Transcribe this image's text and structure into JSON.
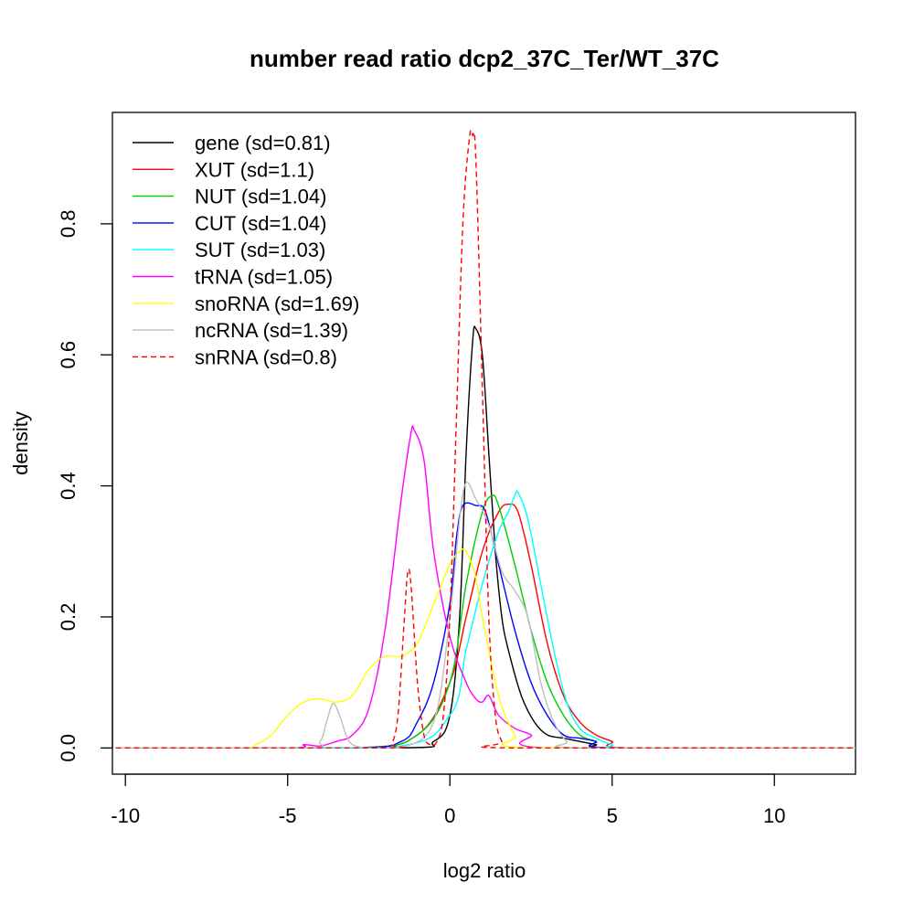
{
  "chart_data": {
    "type": "line",
    "title": "number read ratio dcp2_37C_Ter/WT_37C",
    "xlabel": "log2 ratio",
    "ylabel": "density",
    "xlim": [
      -10.4,
      12.5
    ],
    "ylim": [
      -0.04,
      0.97
    ],
    "xticks": [
      -10,
      -5,
      0,
      5,
      10
    ],
    "xtick_labels": [
      "-10",
      "-5",
      "0",
      "5",
      "10"
    ],
    "yticks": [
      0.0,
      0.2,
      0.4,
      0.6,
      0.8
    ],
    "ytick_labels": [
      "0.0",
      "0.2",
      "0.4",
      "0.6",
      "0.8"
    ],
    "grid": false,
    "legend_position": "top-left",
    "series": [
      {
        "name": "gene (sd=0.81)",
        "color": "#000000",
        "dash": "solid",
        "x": [
          -10.3,
          -1.5,
          -0.5,
          0,
          0.3,
          0.5,
          0.7,
          0.8,
          1.0,
          1.2,
          1.4,
          1.6,
          1.8,
          2.2,
          2.6,
          3.0,
          3.5,
          4.0,
          4.5,
          5.0,
          12.5
        ],
        "y": [
          0,
          0,
          0.01,
          0.05,
          0.2,
          0.45,
          0.62,
          0.64,
          0.6,
          0.45,
          0.3,
          0.2,
          0.15,
          0.08,
          0.04,
          0.02,
          0.015,
          0.01,
          0.005,
          0,
          0
        ]
      },
      {
        "name": "XUT (sd=1.1)",
        "color": "#ff0000",
        "dash": "solid",
        "x": [
          -10.3,
          -3,
          -1,
          0,
          0.5,
          1.0,
          1.5,
          1.8,
          2.1,
          2.5,
          3.0,
          3.5,
          4.0,
          4.5,
          5.0,
          5.5,
          12.5
        ],
        "y": [
          0,
          0,
          0.02,
          0.1,
          0.2,
          0.3,
          0.36,
          0.372,
          0.36,
          0.28,
          0.16,
          0.08,
          0.04,
          0.02,
          0.01,
          0,
          0
        ]
      },
      {
        "name": "NUT (sd=1.04)",
        "color": "#00cd00",
        "dash": "solid",
        "x": [
          -10.3,
          -3,
          -1,
          0,
          0.5,
          1.0,
          1.3,
          1.5,
          2.0,
          2.5,
          3.0,
          3.5,
          4.0,
          4.5,
          5.0,
          12.5
        ],
        "y": [
          0,
          0,
          0.02,
          0.1,
          0.25,
          0.36,
          0.385,
          0.37,
          0.28,
          0.18,
          0.1,
          0.05,
          0.02,
          0.01,
          0,
          0
        ]
      },
      {
        "name": "CUT (sd=1.04)",
        "color": "#0000ff",
        "dash": "solid",
        "x": [
          -10.3,
          -3,
          -1.5,
          -1,
          -0.5,
          0,
          0.2,
          0.4,
          0.8,
          1.1,
          1.5,
          2.0,
          2.5,
          3.0,
          3.5,
          4.0,
          4.5,
          5.0,
          12.5
        ],
        "y": [
          0,
          0,
          0.01,
          0.04,
          0.1,
          0.22,
          0.32,
          0.37,
          0.37,
          0.36,
          0.28,
          0.18,
          0.1,
          0.05,
          0.02,
          0.015,
          0.01,
          0,
          0
        ]
      },
      {
        "name": "SUT (sd=1.03)",
        "color": "#00ffff",
        "dash": "solid",
        "x": [
          -10.3,
          -2,
          0,
          0.5,
          1.0,
          1.5,
          1.8,
          2.0,
          2.1,
          2.4,
          2.8,
          3.2,
          3.6,
          4.0,
          4.5,
          5.0,
          5.5,
          12.5
        ],
        "y": [
          0,
          0,
          0.05,
          0.15,
          0.25,
          0.33,
          0.36,
          0.385,
          0.39,
          0.35,
          0.25,
          0.15,
          0.07,
          0.03,
          0.015,
          0.005,
          0,
          0
        ]
      },
      {
        "name": "tRNA (sd=1.05)",
        "color": "#ff00ff",
        "dash": "solid",
        "x": [
          -10.3,
          -5,
          -4.5,
          -4,
          -3.5,
          -3,
          -2.5,
          -2,
          -1.5,
          -1.2,
          -1.1,
          -0.8,
          -0.5,
          0,
          0.5,
          0.8,
          1.0,
          1.2,
          1.5,
          2.0,
          2.5,
          3.0,
          12.5
        ],
        "y": [
          0,
          0,
          0.005,
          0.003,
          0.01,
          0.02,
          0.06,
          0.18,
          0.38,
          0.48,
          0.485,
          0.44,
          0.3,
          0.17,
          0.1,
          0.075,
          0.07,
          0.08,
          0.05,
          0.03,
          0.02,
          0,
          0
        ]
      },
      {
        "name": "snoRNA (sd=1.69)",
        "color": "#ffff00",
        "dash": "solid",
        "x": [
          -10.3,
          -6.5,
          -6,
          -5.5,
          -5,
          -4.5,
          -4,
          -3.5,
          -3,
          -2.5,
          -2,
          -1.5,
          -1,
          -0.5,
          0,
          0.3,
          0.5,
          0.8,
          1.0,
          1.5,
          2.0,
          2.5,
          12.5
        ],
        "y": [
          0,
          0,
          0.005,
          0.02,
          0.05,
          0.07,
          0.075,
          0.07,
          0.08,
          0.12,
          0.14,
          0.14,
          0.16,
          0.22,
          0.28,
          0.3,
          0.3,
          0.26,
          0.2,
          0.08,
          0.02,
          0,
          0
        ]
      },
      {
        "name": "ncRNA (sd=1.39)",
        "color": "#bebebe",
        "dash": "solid",
        "x": [
          -10.3,
          -4.5,
          -4.0,
          -3.8,
          -3.6,
          -3.4,
          -3.2,
          -3.0,
          -2.5,
          -1.5,
          -0.5,
          0,
          0.3,
          0.5,
          0.8,
          1.2,
          1.6,
          2.0,
          2.4,
          2.8,
          3.2,
          3.6,
          4.0,
          12.5
        ],
        "y": [
          0,
          0,
          0.01,
          0.04,
          0.068,
          0.05,
          0.02,
          0.005,
          0,
          0,
          0.04,
          0.2,
          0.35,
          0.405,
          0.38,
          0.34,
          0.27,
          0.24,
          0.2,
          0.1,
          0.04,
          0.01,
          0,
          0
        ]
      },
      {
        "name": "snRNA (sd=0.8)",
        "color": "#ff0000",
        "dash": "dashed",
        "x": [
          -10.3,
          -2,
          -1.8,
          -1.6,
          -1.4,
          -1.3,
          -1.2,
          -1.0,
          -0.8,
          -0.6,
          -0.4,
          -0.2,
          0,
          0.2,
          0.4,
          0.6,
          0.7,
          0.8,
          1.0,
          1.2,
          1.4,
          1.6,
          1.8,
          12.5
        ],
        "y": [
          0,
          0,
          0.005,
          0.05,
          0.2,
          0.268,
          0.25,
          0.1,
          0.02,
          0.005,
          0.01,
          0.05,
          0.2,
          0.5,
          0.8,
          0.93,
          0.935,
          0.9,
          0.55,
          0.2,
          0.05,
          0.01,
          0,
          0
        ]
      }
    ]
  }
}
